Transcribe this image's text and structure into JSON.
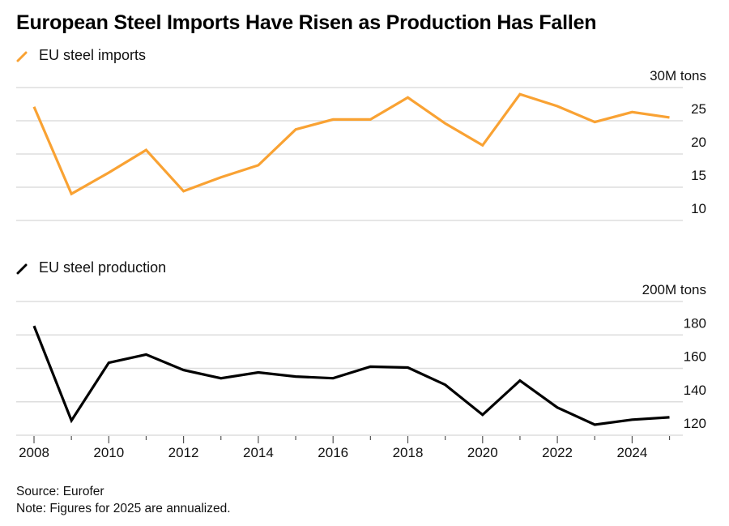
{
  "title": "European Steel Imports Have Risen as Production Has Fallen",
  "footer": {
    "source": "Source: Eurofer",
    "note": "Note: Figures for 2025 are annualized."
  },
  "colors": {
    "imports": "#f9a233",
    "production": "#000000",
    "grid": "#dddddd"
  },
  "chart_data": [
    {
      "type": "line",
      "title": "EU steel imports",
      "legend": "top-left",
      "ylabel": "M tons",
      "unit_label": "30M tons",
      "ylim": [
        10,
        30
      ],
      "yticks": [
        10,
        15,
        20,
        25,
        30
      ],
      "ytick_labels": [
        "10",
        "15",
        "20",
        "25",
        "30M tons"
      ],
      "grid": true,
      "x": [
        2008,
        2009,
        2010,
        2011,
        2012,
        2013,
        2014,
        2015,
        2016,
        2017,
        2018,
        2019,
        2020,
        2021,
        2022,
        2023,
        2024,
        2025
      ],
      "series": [
        {
          "name": "EU steel imports",
          "color": "#f9a233",
          "values": [
            27.1,
            14.0,
            17.2,
            20.6,
            14.4,
            16.5,
            18.3,
            23.7,
            25.2,
            25.2,
            28.5,
            24.6,
            21.3,
            29.0,
            27.2,
            24.8,
            26.3,
            25.5
          ]
        }
      ]
    },
    {
      "type": "line",
      "title": "EU steel production",
      "legend": "top-left",
      "ylabel": "M tons",
      "unit_label": "200M tons",
      "ylim": [
        120,
        200
      ],
      "yticks": [
        120,
        140,
        160,
        180,
        200
      ],
      "ytick_labels": [
        "120",
        "140",
        "160",
        "180",
        "200M tons"
      ],
      "grid": true,
      "xlabel": "",
      "x": [
        2008,
        2009,
        2010,
        2011,
        2012,
        2013,
        2014,
        2015,
        2016,
        2017,
        2018,
        2019,
        2020,
        2021,
        2022,
        2023,
        2024,
        2025
      ],
      "xtick_labels": [
        "2008",
        "2010",
        "2012",
        "2014",
        "2016",
        "2018",
        "2020",
        "2022",
        "2024"
      ],
      "series": [
        {
          "name": "EU steel production",
          "color": "#000000",
          "values": [
            185.4,
            128.8,
            163.4,
            168.3,
            159.0,
            154.1,
            157.6,
            155.1,
            154.1,
            161.0,
            160.5,
            150.2,
            132.2,
            152.7,
            136.6,
            126.3,
            129.3,
            130.7
          ]
        }
      ]
    }
  ]
}
